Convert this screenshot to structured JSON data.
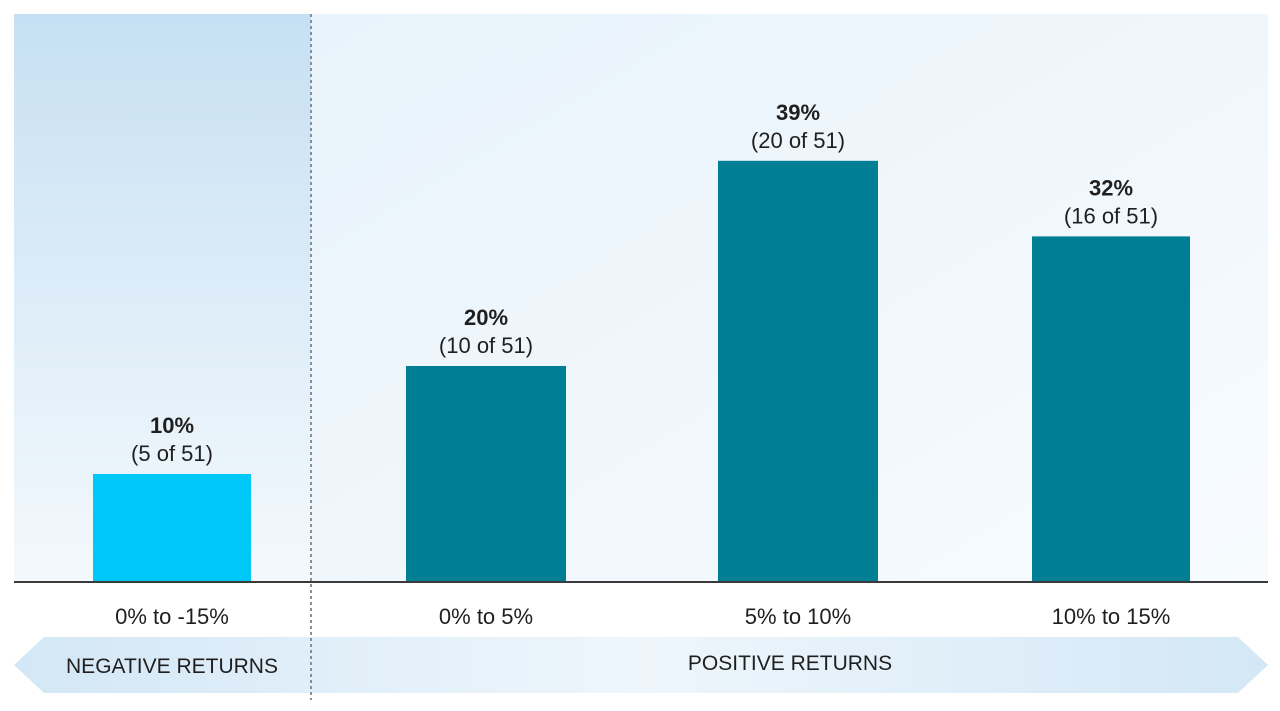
{
  "chart_data": {
    "type": "bar",
    "categories": [
      "0% to -15%",
      "0% to 5%",
      "5% to 10%",
      "10% to 15%"
    ],
    "values": [
      10,
      20,
      39,
      32
    ],
    "counts": [
      "(5 of 51)",
      "(10 of 51)",
      "(20 of 51)",
      "(16 of 51)"
    ],
    "value_labels": [
      "10%",
      "20%",
      "39%",
      "32%"
    ],
    "groups": [
      "negative",
      "positive",
      "positive",
      "positive"
    ],
    "ylim": [
      0,
      45
    ],
    "grid": false,
    "legend": "none",
    "title": "",
    "xlabel": "",
    "ylabel": "",
    "colors": {
      "negative_bar": "#00c8f8",
      "positive_bar": "#007e94",
      "negative_bg": "#c9e3f4",
      "positive_bg": "#eef6fc",
      "band": "#dcecf8",
      "axis": "#3a3a3a",
      "divider": "#8a8f96"
    }
  },
  "bands": {
    "negative_label": "NEGATIVE RETURNS",
    "positive_label": "POSITIVE RETURNS"
  }
}
